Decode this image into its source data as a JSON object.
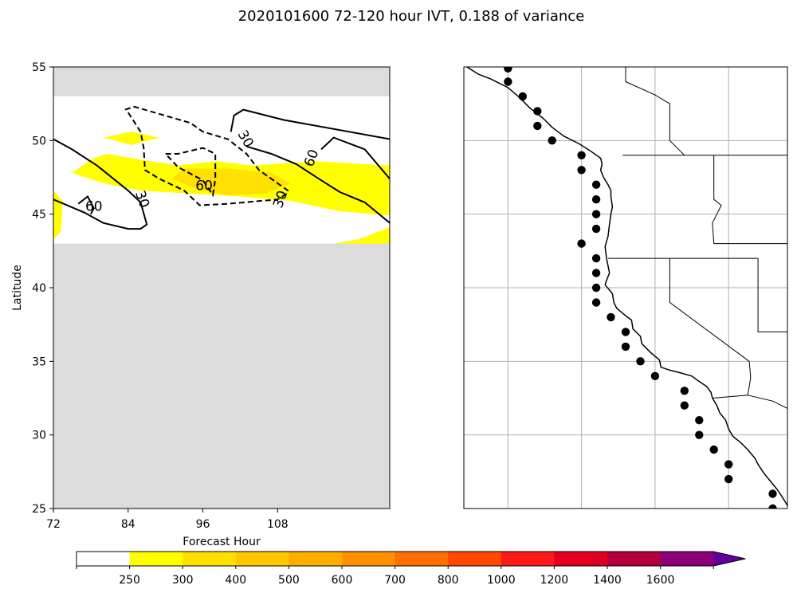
{
  "title": "2020101600 72-120 hour IVT, 0.188 of variance",
  "chart_data": [
    {
      "type": "contour",
      "panel": "left",
      "xlabel": "Forecast Hour",
      "ylabel": "Latitude",
      "xlim": [
        72,
        126
      ],
      "ylim": [
        25,
        55
      ],
      "xticks": [
        "72",
        "84",
        "96",
        "108"
      ],
      "yticks": [
        "25",
        "30",
        "35",
        "40",
        "45",
        "50",
        "55"
      ],
      "valid_lat_range": [
        43,
        53
      ],
      "missing_color": "#dcdcdc",
      "fill_levels": [
        {
          "level": 250,
          "color": "#ffff00",
          "polygons": [
            [
              [
                72,
                46.6
              ],
              [
                73.5,
                45.9
              ],
              [
                73.2,
                43.8
              ],
              [
                72,
                43.3
              ]
            ],
            [
              [
                80.5,
                49.1
              ],
              [
                86,
                48.7
              ],
              [
                92,
                48.3
              ],
              [
                98,
                48.6
              ],
              [
                104,
                48.3
              ],
              [
                114,
                48.6
              ],
              [
                126,
                48.3
              ],
              [
                126,
                44.9
              ],
              [
                118,
                45.2
              ],
              [
                110,
                45.9
              ],
              [
                102,
                46.2
              ],
              [
                94,
                46.4
              ],
              [
                86,
                46.6
              ],
              [
                80,
                47.1
              ],
              [
                75,
                47.8
              ],
              [
                78,
                48.7
              ]
            ],
            [
              [
                80,
                50.2
              ],
              [
                84.5,
                50.6
              ],
              [
                89,
                50.2
              ],
              [
                84.5,
                49.7
              ]
            ],
            [
              [
                117,
                43
              ],
              [
                126,
                43
              ],
              [
                126,
                44.1
              ],
              [
                121,
                43.3
              ]
            ]
          ]
        },
        {
          "level": 300,
          "color": "#ffe000",
          "polygons": [
            [
              [
                93,
                48.1
              ],
              [
                100,
                48.1
              ],
              [
                107,
                47.8
              ],
              [
                110,
                47.1
              ],
              [
                106,
                46.4
              ],
              [
                100,
                46.3
              ],
              [
                95,
                46.7
              ],
              [
                91,
                47.4
              ]
            ]
          ]
        }
      ],
      "contours": [
        {
          "label": "30",
          "style": "solid",
          "lines": [
            [
              [
                100.5,
                50.6
              ],
              [
                101,
                51.7
              ],
              [
                102.5,
                52.1
              ],
              [
                109,
                51.4
              ],
              [
                126,
                50.1
              ]
            ]
          ]
        },
        {
          "label": "30",
          "style": "dashed",
          "lines": [
            [
              [
                83.5,
                52.1
              ],
              [
                85,
                52.3
              ],
              [
                94,
                51.2
              ],
              [
                96,
                50.6
              ],
              [
                100,
                50.1
              ],
              [
                103,
                49.1
              ],
              [
                105,
                48
              ],
              [
                108,
                47.1
              ],
              [
                110,
                46.5
              ]
            ],
            [
              [
                84,
                51.9
              ],
              [
                86,
                50.6
              ],
              [
                86.5,
                49.5
              ],
              [
                86.7,
                48
              ],
              [
                89,
                47.4
              ],
              [
                93,
                46.6
              ],
              [
                95.5,
                45.6
              ],
              [
                100,
                45.7
              ],
              [
                108,
                46.0
              ],
              [
                109.5,
                46.4
              ]
            ]
          ]
        },
        {
          "label": "60",
          "style": "solid",
          "lines": [
            [
              [
                72,
                50.1
              ],
              [
                75,
                49.4
              ],
              [
                79,
                48.3
              ],
              [
                84,
                46.6
              ],
              [
                86,
                45.8
              ],
              [
                87,
                44.3
              ],
              [
                86,
                44.0
              ],
              [
                84,
                44.0
              ],
              [
                80,
                44.4
              ],
              [
                77,
                45.1
              ],
              [
                72,
                46.0
              ]
            ],
            [
              [
                103,
                49.6
              ],
              [
                107,
                49.1
              ],
              [
                111,
                48.4
              ],
              [
                115,
                47.3
              ],
              [
                118,
                46.5
              ],
              [
                122,
                45.8
              ],
              [
                126,
                44.4
              ]
            ],
            [
              [
                76,
                45.7
              ],
              [
                77.5,
                46.2
              ],
              [
                78.5,
                45.4
              ],
              [
                78,
                45
              ]
            ],
            [
              [
                115,
                49.4
              ],
              [
                117,
                50.2
              ],
              [
                122,
                49.4
              ],
              [
                126,
                47.4
              ]
            ]
          ]
        },
        {
          "label": "60",
          "style": "dashed",
          "lines": [
            [
              [
                90,
                49.1
              ],
              [
                92,
                49.1
              ],
              [
                96,
                49.5
              ],
              [
                98,
                49.1
              ],
              [
                98,
                47.4
              ],
              [
                97.6,
                46.3
              ],
              [
                96,
                47.3
              ],
              [
                92,
                48.2
              ],
              [
                90,
                49.1
              ]
            ]
          ]
        }
      ],
      "contour_labels": [
        {
          "text": "60",
          "x": 78.5,
          "y": 45.5,
          "rotation": 0
        },
        {
          "text": "30",
          "x": 86.2,
          "y": 46.0,
          "rotation": 70
        },
        {
          "text": "60",
          "x": 96.2,
          "y": 46.9,
          "rotation": 0
        },
        {
          "text": "30",
          "x": 102.8,
          "y": 50.1,
          "rotation": 60
        },
        {
          "text": "30",
          "x": 108.5,
          "y": 46.0,
          "rotation": -70
        },
        {
          "text": "60",
          "x": 113.5,
          "y": 48.8,
          "rotation": -70
        }
      ]
    },
    {
      "type": "map",
      "panel": "right",
      "lon_range": [
        -134,
        -112
      ],
      "lat_range": [
        25,
        55
      ],
      "gridlines": {
        "lons": [
          -131,
          -126,
          -121,
          -116
        ],
        "lats": [
          30,
          35,
          40,
          45,
          50
        ]
      },
      "points_lonlat": [
        [
          -131,
          54.9
        ],
        [
          -131,
          54
        ],
        [
          -130,
          53
        ],
        [
          -129,
          52
        ],
        [
          -129,
          51
        ],
        [
          -128,
          50
        ],
        [
          -126,
          49
        ],
        [
          -126,
          48
        ],
        [
          -125,
          47
        ],
        [
          -125,
          46
        ],
        [
          -125,
          45
        ],
        [
          -125,
          44
        ],
        [
          -126,
          43
        ],
        [
          -125,
          42
        ],
        [
          -125,
          41
        ],
        [
          -125,
          40
        ],
        [
          -125,
          39
        ],
        [
          -124,
          38
        ],
        [
          -123,
          37
        ],
        [
          -123,
          36
        ],
        [
          -122,
          35
        ],
        [
          -121,
          34
        ],
        [
          -119,
          33
        ],
        [
          -119,
          32
        ],
        [
          -118,
          31
        ],
        [
          -118,
          30
        ],
        [
          -117,
          29
        ],
        [
          -116,
          28
        ],
        [
          -116,
          27
        ],
        [
          -113,
          26
        ],
        [
          -113,
          25
        ]
      ],
      "coastline_lonlat": [
        [
          -133.8,
          55
        ],
        [
          -133,
          54.5
        ],
        [
          -132.2,
          54.2
        ],
        [
          -131,
          53.6
        ],
        [
          -130.3,
          53
        ],
        [
          -129.5,
          52.2
        ],
        [
          -128.6,
          51.5
        ],
        [
          -128,
          50.9
        ],
        [
          -127.2,
          50.3
        ],
        [
          -126.2,
          49.8
        ],
        [
          -125.4,
          49.3
        ],
        [
          -124.7,
          48.8
        ],
        [
          -124.6,
          48.4
        ],
        [
          -124.7,
          48
        ],
        [
          -124.5,
          47.5
        ],
        [
          -124.2,
          47
        ],
        [
          -124,
          46.6
        ],
        [
          -124,
          46.2
        ],
        [
          -123.9,
          45.5
        ],
        [
          -124,
          45
        ],
        [
          -124.1,
          44.3
        ],
        [
          -124.2,
          43.5
        ],
        [
          -124.4,
          42.8
        ],
        [
          -124.3,
          42
        ],
        [
          -124.2,
          41.5
        ],
        [
          -124.1,
          41
        ],
        [
          -124.3,
          40.5
        ],
        [
          -124.4,
          40.2
        ],
        [
          -123.9,
          39.6
        ],
        [
          -123.8,
          39
        ],
        [
          -123.6,
          38.6
        ],
        [
          -123,
          38.1
        ],
        [
          -122.6,
          37.8
        ],
        [
          -122.5,
          37.2
        ],
        [
          -122,
          36.7
        ],
        [
          -121.9,
          36.2
        ],
        [
          -121.3,
          35.6
        ],
        [
          -120.7,
          35.1
        ],
        [
          -120.6,
          34.6
        ],
        [
          -120,
          34.4
        ],
        [
          -119.2,
          34.2
        ],
        [
          -118.5,
          34
        ],
        [
          -118.1,
          33.7
        ],
        [
          -117.5,
          33.3
        ],
        [
          -117.2,
          32.9
        ],
        [
          -117.1,
          32.5
        ],
        [
          -116.8,
          32.0
        ],
        [
          -116.6,
          31.5
        ],
        [
          -116.2,
          31
        ],
        [
          -116,
          30.4
        ],
        [
          -115.7,
          29.9
        ],
        [
          -115.2,
          29.5
        ],
        [
          -114.7,
          29.0
        ],
        [
          -114.2,
          28.4
        ],
        [
          -114,
          28
        ],
        [
          -113.6,
          27.4
        ],
        [
          -113.2,
          26.9
        ],
        [
          -112.7,
          26.3
        ],
        [
          -112.3,
          25.7
        ],
        [
          -112,
          25.2
        ]
      ],
      "borders_lonlat": [
        [
          [
            -123.2,
            49
          ],
          [
            -112,
            49
          ]
        ],
        [
          [
            -117,
            49
          ],
          [
            -117,
            46
          ],
          [
            -116.5,
            45.6
          ],
          [
            -116.8,
            45
          ],
          [
            -117.1,
            44.4
          ],
          [
            -117,
            43
          ],
          [
            -112,
            43
          ]
        ],
        [
          [
            -124.2,
            42
          ],
          [
            -114,
            42
          ]
        ],
        [
          [
            -120,
            42
          ],
          [
            -120,
            39
          ],
          [
            -114.6,
            35
          ],
          [
            -114.5,
            33.9
          ],
          [
            -114.7,
            32.7
          ],
          [
            -117.1,
            32.5
          ]
        ],
        [
          [
            -114,
            42
          ],
          [
            -114,
            37
          ],
          [
            -112,
            37
          ]
        ],
        [
          [
            -114.7,
            32.7
          ],
          [
            -113,
            32.3
          ],
          [
            -112,
            31.8
          ]
        ],
        [
          [
            -123,
            55
          ],
          [
            -123,
            54
          ],
          [
            -121,
            53.1
          ],
          [
            -120,
            52.5
          ],
          [
            -120,
            50
          ],
          [
            -119,
            49
          ]
        ]
      ]
    },
    {
      "type": "colorbar",
      "tick_labels": [
        "250",
        "300",
        "400",
        "500",
        "600",
        "700",
        "800",
        "1000",
        "1200",
        "1400",
        "1600"
      ],
      "colors": [
        "#ffffff",
        "#ffff00",
        "#ffe000",
        "#ffc800",
        "#ffae00",
        "#ff9000",
        "#ff7000",
        "#ff4800",
        "#ff1a1a",
        "#e20020",
        "#b3003a",
        "#8b0078",
        "#61009a"
      ],
      "extend": "max"
    }
  ]
}
